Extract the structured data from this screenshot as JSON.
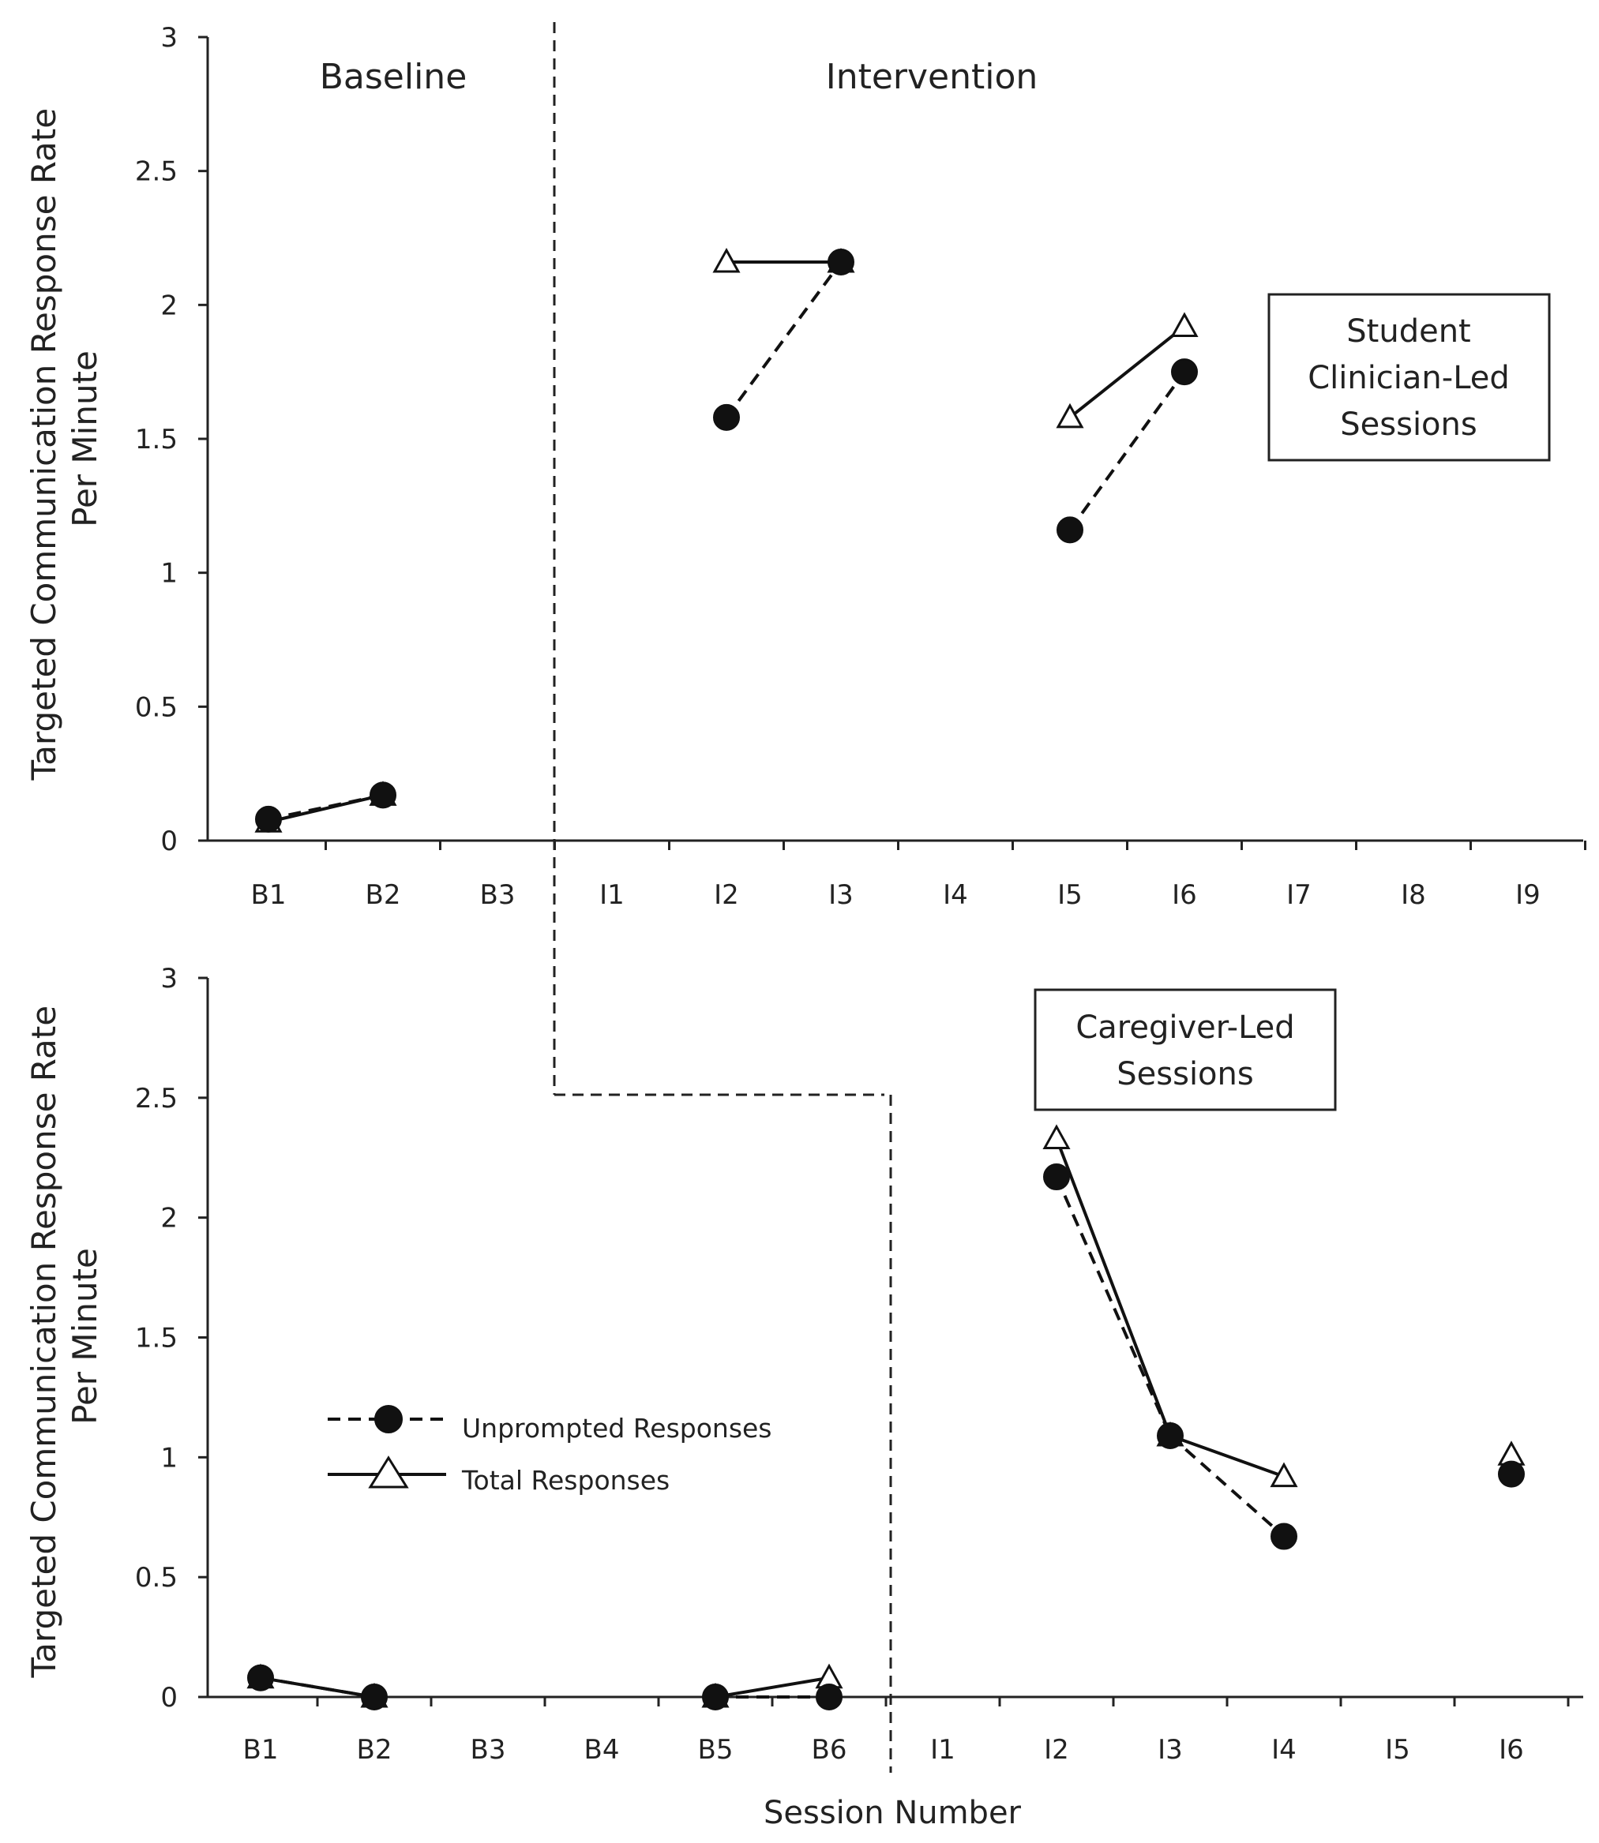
{
  "chart_data": [
    {
      "type": "line",
      "ylabel": "Targeted Communication Response Rate Per Minute",
      "ylabel_lines": [
        "Targeted Communication Response Rate",
        "Per Minute"
      ],
      "ylim": [
        0,
        3
      ],
      "yticks": [
        "0",
        "0.5",
        "1",
        "1.5",
        "2",
        "2.5",
        "3"
      ],
      "categories": [
        "B1",
        "B2",
        "B3",
        "I1",
        "I2",
        "I3",
        "I4",
        "I5",
        "I6",
        "I7",
        "I8",
        "I9"
      ],
      "phase_labels": [
        "Baseline",
        "Intervention"
      ],
      "annotation_lines": [
        "Student",
        "Clinician-Led",
        "Sessions"
      ],
      "series": [
        {
          "name": "Unprompted Responses",
          "marker": "circle",
          "line": "dashed",
          "values": [
            0.08,
            0.17,
            null,
            null,
            1.58,
            2.16,
            null,
            1.16,
            1.75,
            null,
            null,
            null
          ]
        },
        {
          "name": "Total Responses",
          "marker": "triangle",
          "line": "solid",
          "values": [
            0.07,
            0.17,
            null,
            null,
            2.16,
            2.16,
            null,
            1.58,
            1.92,
            null,
            null,
            null
          ]
        }
      ]
    },
    {
      "type": "line",
      "ylabel": "Targeted Communication Response Rate Per Minute",
      "ylabel_lines": [
        "Targeted Communication Response Rate",
        "Per Minute"
      ],
      "ylim": [
        0,
        3
      ],
      "yticks": [
        "0",
        "0.5",
        "1",
        "1.5",
        "2",
        "2.5",
        "3"
      ],
      "categories": [
        "B1",
        "B2",
        "B3",
        "B4",
        "B5",
        "B6",
        "I1",
        "I2",
        "I3",
        "I4",
        "I5",
        "I6"
      ],
      "xlabel": "Session Number",
      "annotation_lines": [
        "Caregiver-Led",
        "Sessions"
      ],
      "legend": [
        "Unprompted Responses",
        "Total Responses"
      ],
      "series": [
        {
          "name": "Unprompted Responses",
          "marker": "circle",
          "line": "dashed",
          "values": [
            0.08,
            0.0,
            null,
            null,
            0.0,
            0.0,
            null,
            2.17,
            1.09,
            0.67,
            null,
            0.93
          ]
        },
        {
          "name": "Total Responses",
          "marker": "triangle",
          "line": "solid",
          "values": [
            0.08,
            0.0,
            null,
            null,
            0.0,
            0.08,
            null,
            2.33,
            1.09,
            0.92,
            null,
            1.01
          ]
        }
      ]
    }
  ]
}
